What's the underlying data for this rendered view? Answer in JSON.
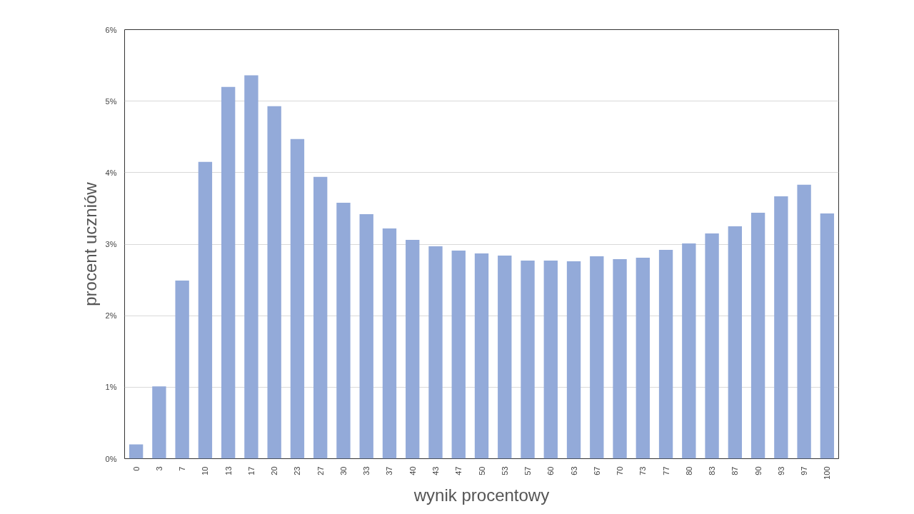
{
  "chart_data": {
    "type": "bar",
    "xlabel": "wynik procentowy",
    "ylabel": "procent uczniów",
    "categories": [
      "0",
      "3",
      "7",
      "10",
      "13",
      "17",
      "20",
      "23",
      "27",
      "30",
      "33",
      "37",
      "40",
      "43",
      "47",
      "50",
      "53",
      "57",
      "60",
      "63",
      "67",
      "70",
      "73",
      "77",
      "80",
      "83",
      "87",
      "90",
      "93",
      "97",
      "100"
    ],
    "values": [
      0.2,
      1.01,
      2.49,
      4.15,
      5.2,
      5.36,
      4.93,
      4.47,
      3.94,
      3.58,
      3.42,
      3.22,
      3.06,
      2.97,
      2.91,
      2.87,
      2.84,
      2.77,
      2.77,
      2.76,
      2.83,
      2.79,
      2.81,
      2.92,
      3.01,
      3.15,
      3.25,
      3.44,
      3.67,
      3.83,
      3.43
    ],
    "color": "#93aad9",
    "ylim": [
      0,
      6
    ],
    "yticks": [
      {
        "value": 0,
        "label": "0%"
      },
      {
        "value": 1,
        "label": "1%"
      },
      {
        "value": 2,
        "label": "2%"
      },
      {
        "value": 3,
        "label": "3%"
      },
      {
        "value": 4,
        "label": "4%"
      },
      {
        "value": 5,
        "label": "5%"
      },
      {
        "value": 6,
        "label": "6%"
      }
    ],
    "grid": "y"
  }
}
